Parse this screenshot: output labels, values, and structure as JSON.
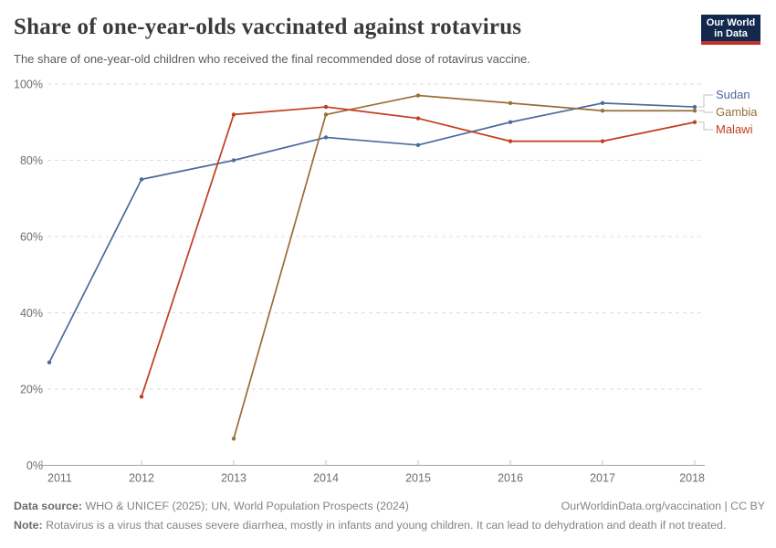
{
  "header": {
    "logo_line1": "Our World",
    "logo_line2": "in Data",
    "logo_bg": "#12294D",
    "logo_accent": "#C0332B"
  },
  "chart_data": {
    "type": "line",
    "title": "Share of one-year-olds vaccinated against rotavirus",
    "subtitle": "The share of one-year-old children who received the final recommended dose of rotavirus vaccine.",
    "x": [
      2011,
      2012,
      2013,
      2014,
      2015,
      2016,
      2017,
      2018
    ],
    "series": [
      {
        "name": "Sudan",
        "color": "#4C6A9C",
        "values": [
          27,
          75,
          80,
          86,
          84,
          90,
          95,
          94
        ]
      },
      {
        "name": "Gambia",
        "color": "#996D39",
        "values": [
          null,
          null,
          7,
          92,
          97,
          95,
          93,
          93
        ]
      },
      {
        "name": "Malawi",
        "color": "#C23D1E",
        "values": [
          null,
          18,
          92,
          94,
          91,
          85,
          85,
          90
        ]
      }
    ],
    "xlabel": "",
    "ylabel": "",
    "ylim": [
      0,
      100
    ],
    "yticks": [
      0,
      20,
      40,
      60,
      80,
      100
    ],
    "ytick_suffix": "%",
    "grid": "horizontal-dashed",
    "legend_position": "right"
  },
  "footer": {
    "source_label": "Data source:",
    "source_text": " WHO & UNICEF (2025); UN, World Population Prospects (2024)",
    "link": "OurWorldinData.org/vaccination | CC BY",
    "note_label": "Note:",
    "note_text": " Rotavirus is a virus that causes severe diarrhea, mostly in infants and young children. It can lead to dehydration and death if not treated."
  }
}
